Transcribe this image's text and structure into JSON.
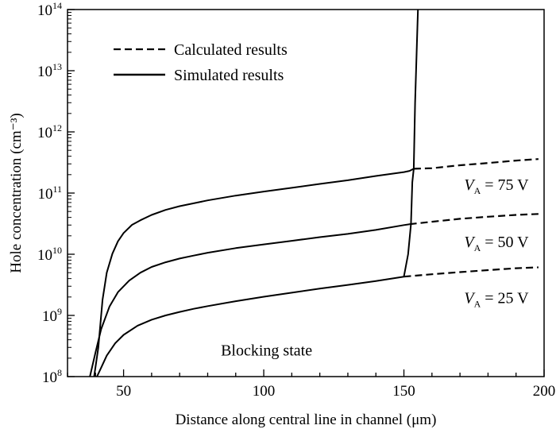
{
  "chart_data": {
    "type": "line",
    "title": "",
    "xlabel": "Distance along central line in channel (μm)",
    "ylabel": "Hole concentration (cm⁻³)",
    "xlim": [
      30,
      200
    ],
    "ylim": [
      100000000.0,
      100000000000000.0
    ],
    "yscale": "log",
    "x_ticks": [
      50,
      100,
      150,
      200
    ],
    "x_tick_labels": [
      "50",
      "100",
      "150",
      "200"
    ],
    "y_ticks": [
      {
        "value": 100000000.0,
        "base": "10",
        "exp": "8"
      },
      {
        "value": 1000000000.0,
        "base": "10",
        "exp": "9"
      },
      {
        "value": 10000000000.0,
        "base": "10",
        "exp": "10"
      },
      {
        "value": 100000000000.0,
        "base": "10",
        "exp": "11"
      },
      {
        "value": 1000000000000.0,
        "base": "10",
        "exp": "12"
      },
      {
        "value": 10000000000000.0,
        "base": "10",
        "exp": "13"
      },
      {
        "value": 100000000000000.0,
        "base": "10",
        "exp": "14"
      }
    ],
    "legend": {
      "placement": "top-left",
      "entries": [
        {
          "label": "Calculated results",
          "style": "dashed"
        },
        {
          "label": "Simulated results",
          "style": "solid"
        }
      ]
    },
    "series": [
      {
        "case": "VA = 75 V",
        "style": "solid",
        "x": [
          39.5,
          41,
          42.5,
          44,
          46,
          48,
          50,
          53,
          56,
          60,
          65,
          70,
          75,
          80,
          90,
          100,
          110,
          120,
          130,
          140,
          150,
          152,
          153.5
        ],
        "y": [
          100000000.0,
          300000000.0,
          1800000000.0,
          5000000000.0,
          10200000000.0,
          16300000000.0,
          22200000000.0,
          30200000000.0,
          36000000000.0,
          44000000000.0,
          53000000000.0,
          61000000000.0,
          68000000000.0,
          76000000000.0,
          91000000000.0,
          106000000000.0,
          122000000000.0,
          141000000000.0,
          162000000000.0,
          190000000000.0,
          220000000000.0,
          230000000000.0,
          250000000000.0
        ]
      },
      {
        "case": "VA = 75 V",
        "style": "dashed",
        "x": [
          153.5,
          160,
          170,
          180,
          190,
          198
        ],
        "y": [
          250000000000.0,
          255000000000.0,
          285000000000.0,
          310000000000.0,
          340000000000.0,
          360000000000.0
        ]
      },
      {
        "case": "VA = 50 V",
        "style": "solid",
        "x": [
          38,
          40,
          42,
          45,
          48,
          52,
          56,
          60,
          65,
          70,
          75,
          80,
          90,
          100,
          110,
          120,
          130,
          140,
          150,
          152
        ],
        "y": [
          100000000.0,
          250000000.0,
          600000000.0,
          1400000000.0,
          2400000000.0,
          3700000000.0,
          5000000000.0,
          6200000000.0,
          7400000000.0,
          8500000000.0,
          9500000000.0,
          10600000000.0,
          12600000000.0,
          14500000000.0,
          16600000000.0,
          19000000000.0,
          21500000000.0,
          25000000000.0,
          30000000000.0,
          31000000000.0
        ]
      },
      {
        "case": "VA = 50 V",
        "style": "dashed",
        "x": [
          152,
          160,
          170,
          180,
          190,
          198
        ],
        "y": [
          31000000000.0,
          34000000000.0,
          38000000000.0,
          41000000000.0,
          44000000000.0,
          45500000000.0
        ]
      },
      {
        "case": "VA = 25 V",
        "style": "solid",
        "x": [
          40.5,
          42,
          44,
          47,
          50,
          55,
          60,
          65,
          70,
          75,
          80,
          90,
          100,
          110,
          120,
          130,
          140,
          150
        ],
        "y": [
          100000000.0,
          140000000.0,
          220000000.0,
          350000000.0,
          480000000.0,
          680000000.0,
          850000000.0,
          1000000000.0,
          1140000000.0,
          1280000000.0,
          1420000000.0,
          1710000000.0,
          2020000000.0,
          2350000000.0,
          2750000000.0,
          3150000000.0,
          3650000000.0,
          4300000000.0
        ]
      },
      {
        "case": "VA = 25 V",
        "style": "dashed",
        "x": [
          150,
          160,
          170,
          180,
          190,
          198
        ],
        "y": [
          4300000000.0,
          4700000000.0,
          5100000000.0,
          5500000000.0,
          5900000000.0,
          6100000000.0
        ]
      },
      {
        "case": "simulated breakdown edge",
        "style": "solid",
        "x": [
          150,
          151.5,
          152.5,
          153,
          153.5,
          154,
          155
        ],
        "y": [
          4300000000.0,
          10000000000.0,
          31000000000.0,
          150000000000.0,
          250000000000.0,
          3000000000000.0,
          100000000000000.0
        ]
      }
    ],
    "annotations": [
      {
        "text_parts": [
          "V",
          "A",
          " = 75 V"
        ],
        "x": 183,
        "y": 112000000000.0
      },
      {
        "text_parts": [
          "V",
          "A",
          " = 50 V"
        ],
        "x": 183,
        "y": 13000000000.0
      },
      {
        "text_parts": [
          "V",
          "A",
          " = 25 V"
        ],
        "x": 183,
        "y": 1600000000.0
      },
      {
        "text_parts": [
          "Blocking state"
        ],
        "x": 101,
        "y": 220000000.0
      }
    ]
  }
}
